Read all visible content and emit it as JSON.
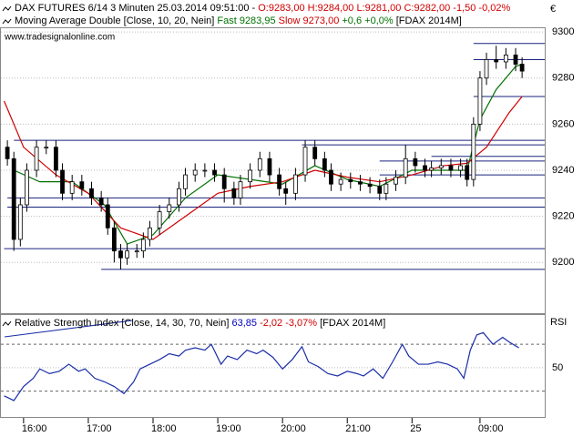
{
  "chart_data": [
    {
      "type": "candlestick",
      "title_parts": [
        {
          "text": "DAX FUTURES 6/14 3 Minuten  25.03.2014 09:51:00 - ",
          "color": "#000000"
        },
        {
          "text": "O:9283,00 H:9284,00 L:9281,00 C:9282,00 -1,50 -0,02%",
          "color": "#d00000"
        }
      ],
      "indicator_parts": [
        {
          "text": "Moving Average Double [Close, 10, 20, Nein] ",
          "color": "#000000"
        },
        {
          "text": "Fast 9283,95 ",
          "color": "#007000"
        },
        {
          "text": "Slow 9273,00 ",
          "color": "#d00000"
        },
        {
          "text": "+0,6 +0,0% ",
          "color": "#007000"
        },
        {
          "text": "[FDAX 2014M]",
          "color": "#000000"
        }
      ],
      "watermark": "www.tradesignalonline.com",
      "y_axis_label": "€",
      "x": [
        -5,
        -3,
        -1,
        1,
        4,
        7,
        10,
        12,
        15,
        18,
        21,
        24,
        26,
        28,
        30,
        32,
        35,
        37,
        39,
        42,
        45,
        48,
        50,
        53,
        56,
        59,
        62,
        65,
        67,
        70,
        73,
        76,
        79,
        81,
        84,
        87,
        90,
        93,
        95,
        98,
        101,
        104,
        107,
        110,
        112,
        115,
        118,
        121,
        124,
        126,
        129,
        132,
        135,
        137,
        139,
        141,
        143,
        146,
        149,
        152,
        154
      ],
      "open": [
        9250,
        9245,
        9210,
        9225,
        9240,
        9250,
        9250,
        9240,
        9230,
        9235,
        9232,
        9228,
        9225,
        9215,
        9205,
        9202,
        9205,
        9205,
        9210,
        9215,
        9222,
        9225,
        9232,
        9238,
        9240,
        9240,
        9238,
        9232,
        9228,
        9235,
        9240,
        9245,
        9238,
        9232,
        9230,
        9238,
        9250,
        9245,
        9240,
        9234,
        9236,
        9235,
        9234,
        9233,
        9230,
        9234,
        9237,
        9245,
        9242,
        9240,
        9241,
        9242,
        9240,
        9242,
        9236,
        9260,
        9280,
        9288,
        9287,
        9290,
        9286
      ],
      "high": [
        9253,
        9248,
        9228,
        9243,
        9253,
        9253,
        9253,
        9243,
        9238,
        9238,
        9235,
        9231,
        9228,
        9218,
        9208,
        9208,
        9208,
        9213,
        9218,
        9225,
        9228,
        9235,
        9241,
        9243,
        9243,
        9243,
        9241,
        9235,
        9238,
        9243,
        9248,
        9248,
        9241,
        9235,
        9241,
        9253,
        9253,
        9248,
        9243,
        9239,
        9239,
        9238,
        9237,
        9236,
        9237,
        9240,
        9251,
        9248,
        9245,
        9244,
        9245,
        9245,
        9245,
        9245,
        9263,
        9283,
        9291,
        9294,
        9293,
        9293,
        9289
      ],
      "low": [
        9242,
        9205,
        9207,
        9222,
        9237,
        9247,
        9237,
        9227,
        9227,
        9229,
        9225,
        9222,
        9212,
        9200,
        9197,
        9199,
        9202,
        9202,
        9207,
        9212,
        9219,
        9222,
        9229,
        9235,
        9237,
        9235,
        9226,
        9225,
        9225,
        9232,
        9237,
        9235,
        9229,
        9225,
        9227,
        9235,
        9242,
        9237,
        9231,
        9231,
        9232,
        9231,
        9230,
        9227,
        9227,
        9231,
        9234,
        9239,
        9237,
        9237,
        9238,
        9237,
        9237,
        9233,
        9233,
        9257,
        9277,
        9284,
        9284,
        9283,
        9280
      ],
      "close": [
        9245,
        9210,
        9225,
        9240,
        9250,
        9250,
        9240,
        9230,
        9235,
        9232,
        9228,
        9225,
        9215,
        9205,
        9202,
        9205,
        9205,
        9210,
        9215,
        9222,
        9225,
        9232,
        9238,
        9240,
        9240,
        9238,
        9232,
        9228,
        9235,
        9240,
        9245,
        9238,
        9232,
        9230,
        9238,
        9250,
        9245,
        9240,
        9234,
        9236,
        9235,
        9234,
        9233,
        9230,
        9234,
        9237,
        9245,
        9242,
        9240,
        9241,
        9242,
        9240,
        9242,
        9236,
        9260,
        9280,
        9288,
        9287,
        9290,
        9286,
        9283
      ],
      "moving_averages": [
        {
          "color": "#007000",
          "x": [
            -3,
            5,
            15,
            25,
            32,
            40,
            50,
            60,
            70,
            80,
            90,
            100,
            110,
            120,
            130,
            137,
            141,
            146,
            152,
            154
          ],
          "values": [
            9240,
            9235,
            9235,
            9225,
            9208,
            9212,
            9228,
            9238,
            9236,
            9234,
            9242,
            9236,
            9233,
            9240,
            9240,
            9240,
            9262,
            9275,
            9285,
            9286
          ]
        },
        {
          "color": "#d00000",
          "x": [
            -6,
            0,
            10,
            20,
            30,
            40,
            50,
            60,
            70,
            80,
            90,
            100,
            110,
            120,
            130,
            137,
            143,
            150,
            154
          ],
          "values": [
            9270,
            9250,
            9238,
            9230,
            9215,
            9210,
            9220,
            9230,
            9233,
            9235,
            9240,
            9237,
            9235,
            9238,
            9242,
            9243,
            9250,
            9265,
            9272
          ]
        }
      ],
      "levels": [
        {
          "value": 9295,
          "from": 139
        },
        {
          "value": 9288,
          "from": 139
        },
        {
          "value": 9272,
          "from": 139
        },
        {
          "value": 9253,
          "from": -3
        },
        {
          "value": 9251,
          "from": 86
        },
        {
          "value": 9246,
          "from": 126
        },
        {
          "value": 9244,
          "from": 110
        },
        {
          "value": 9238,
          "from": 110
        },
        {
          "value": 9228,
          "from": -5
        },
        {
          "value": 9224,
          "from": -5
        },
        {
          "value": 9206,
          "from": -6
        },
        {
          "value": 9197,
          "from": 24
        }
      ],
      "level_color": "#1a237e",
      "ylim": [
        9178,
        9302
      ],
      "yticks": [
        9200,
        9220,
        9240,
        9260,
        9280,
        9300
      ],
      "xlim": [
        -7,
        161
      ],
      "xticks": [
        {
          "value": 0,
          "label": "16:00"
        },
        {
          "value": 20,
          "label": "17:00"
        },
        {
          "value": 40,
          "label": "18:00"
        },
        {
          "value": 60,
          "label": "19:00"
        },
        {
          "value": 80,
          "label": "20:00"
        },
        {
          "value": 100,
          "label": "21:00"
        },
        {
          "value": 120,
          "label": "25"
        },
        {
          "value": 141,
          "label": "09:00"
        }
      ],
      "grid": true
    },
    {
      "type": "line",
      "title_parts": [
        {
          "text": "Relative Strength Index [Close, 14, 30, 70, Nein] ",
          "color": "#000000"
        },
        {
          "text": "63,85 ",
          "color": "#0000c0"
        },
        {
          "text": "-2,02 -3,07% ",
          "color": "#d00000"
        },
        {
          "text": "[FDAX 2014M]",
          "color": "#000000"
        }
      ],
      "y_axis_label": "RSI",
      "color": "#1a2ea8",
      "x": [
        -6,
        -3,
        0,
        3,
        5,
        8,
        11,
        14,
        17,
        19,
        22,
        25,
        28,
        31,
        34,
        36,
        39,
        42,
        45,
        48,
        50,
        53,
        56,
        58,
        61,
        63,
        66,
        69,
        72,
        74,
        77,
        80,
        83,
        86,
        88,
        91,
        94,
        97,
        100,
        103,
        105,
        108,
        111,
        114,
        117,
        119,
        122,
        125,
        128,
        131,
        134,
        136,
        138,
        140,
        142,
        145,
        148,
        150,
        153
      ],
      "values": [
        26,
        22,
        34,
        41,
        49,
        45,
        47,
        53,
        47,
        49,
        41,
        38,
        34,
        28,
        38,
        49,
        53,
        57,
        62,
        60,
        65,
        67,
        65,
        70,
        53,
        60,
        57,
        65,
        62,
        65,
        59,
        49,
        57,
        68,
        55,
        51,
        45,
        43,
        47,
        45,
        43,
        49,
        41,
        55,
        70,
        60,
        53,
        53,
        55,
        53,
        49,
        41,
        65,
        78,
        80,
        70,
        76,
        72,
        67
      ],
      "bands": [
        30,
        70
      ],
      "ylim": [
        8,
        95
      ],
      "yticks": [
        50
      ]
    }
  ]
}
